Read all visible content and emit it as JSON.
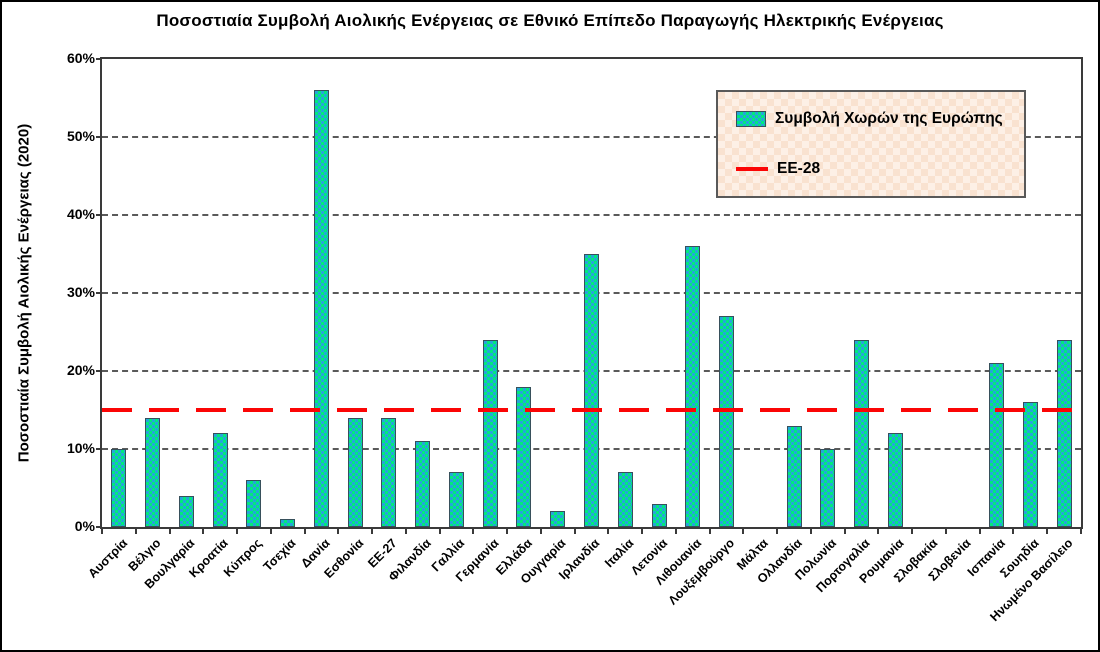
{
  "figure": {
    "title": "Ποσοστιαία Συμβολή Αιολικής Ενέργειας σε Εθνικό Επίπεδο Παραγωγής Ηλεκτρικής Ενέργειας",
    "y_axis_title": "Ποσοστιαία Συμβολή Αιολικής Ενέργειας (2020)"
  },
  "legend": {
    "series_label": "Συμβολή Χωρών της Ευρώπης",
    "reference_label": "EE-28",
    "background_color": "#fbe6d7",
    "border_color": "#595959"
  },
  "colors": {
    "bar_check_green": "#00ea7d",
    "bar_check_blue": "#25a6d9",
    "bar_border": "#37505b",
    "reference_line_red": "#fb0505",
    "gridline_gray": "#5a5a5a",
    "axis_dark": "#3a3a3a"
  },
  "chart_data": {
    "type": "bar",
    "title": "Ποσοστιαία Συμβολή Αιολικής Ενέργειας σε Εθνικό Επίπεδο Παραγωγής Ηλεκτρικής Ενέργειας",
    "xlabel": "",
    "ylabel": "Ποσοστιαία Συμβολή Αιολικής Ενέργειας (2020)",
    "ylim": [
      0,
      60
    ],
    "y_tick_labels": [
      "0%",
      "10%",
      "20%",
      "30%",
      "40%",
      "50%",
      "60%"
    ],
    "grid": "horizontal-dashed",
    "legend_position": "top-right",
    "categories": [
      "Αυστρία",
      "Βέλγιο",
      "Βουλγαρία",
      "Κροατία",
      "Κύπρος",
      "Τσεχία",
      "Δανία",
      "Εσθονία",
      "ΕΕ-27",
      "Φιλανδία",
      "Γαλλία",
      "Γερμανία",
      "Ελλάδα",
      "Ουγγαρία",
      "Ιρλανδία",
      "Ιταλία",
      "Λετονία",
      "Λιθουανία",
      "Λουξεμβούργο",
      "Μάλτα",
      "Ολλανδία",
      "Πολωνία",
      "Πορτογαλία",
      "Ρουμανία",
      "Σλοβακία",
      "Σλοβενία",
      "Ισπανία",
      "Σουηδία",
      "Ηνωμένο Βασίλειο"
    ],
    "series": [
      {
        "name": "Συμβολή Χωρών της Ευρώπης",
        "unit": "%",
        "values": [
          10,
          14,
          4,
          12,
          6,
          1,
          56,
          14,
          14,
          11,
          7,
          24,
          18,
          2,
          35,
          7,
          3,
          36,
          27,
          0,
          13,
          10,
          24,
          12,
          0,
          0,
          21,
          16,
          24
        ]
      }
    ],
    "reference_line": {
      "name": "EE-28",
      "value": 15,
      "unit": "%",
      "style": "dashed",
      "color": "#fb0505"
    }
  }
}
